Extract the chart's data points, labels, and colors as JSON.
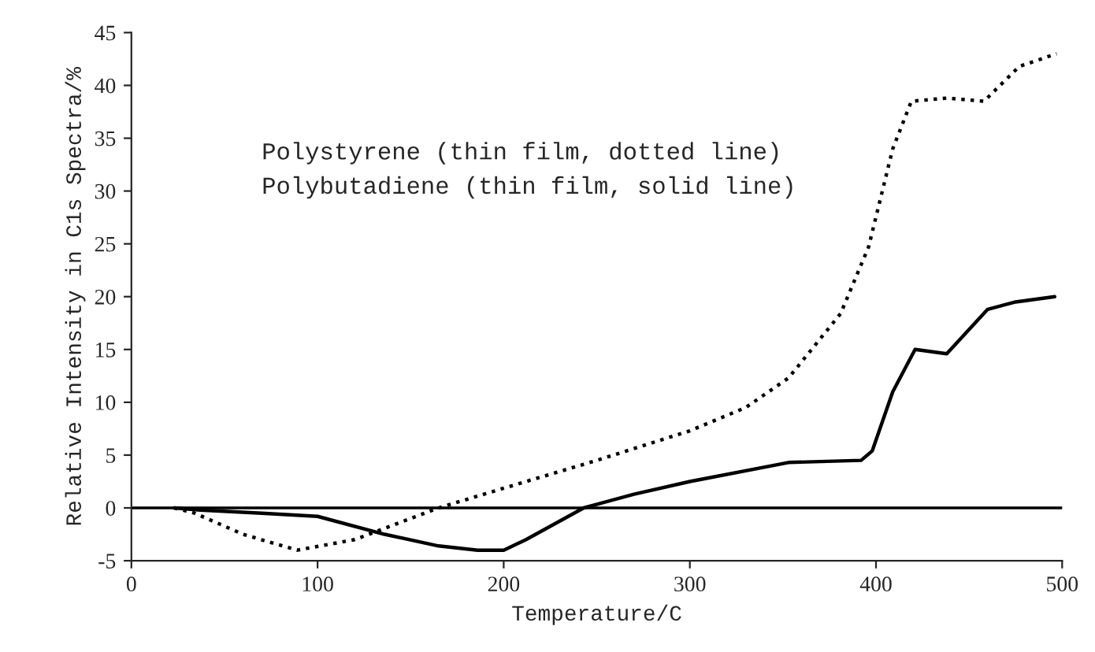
{
  "chart_data": {
    "type": "line",
    "xlabel": "Temperature/C",
    "ylabel": "Relative Intensity in C1s Spectra/%",
    "annotations": [
      "Polystyrene (thin film, dotted line)",
      "Polybutadiene (thin film, solid line)"
    ],
    "series": [
      {
        "color": "#000000",
        "line_style": "dotted",
        "x": [
          23,
          34,
          60,
          89,
          120,
          165,
          212,
          250,
          300,
          330,
          353,
          381,
          396,
          409,
          419,
          438,
          458,
          477,
          497
        ],
        "values": [
          0,
          -0.5,
          -2.5,
          -4,
          -3,
          0,
          2.5,
          4.5,
          7.3,
          9.5,
          12.3,
          18.4,
          24.7,
          34,
          38.5,
          38.8,
          38.5,
          41.8,
          43
        ]
      },
      {
        "color": "#000000",
        "line_style": "solid",
        "x": [
          23,
          37,
          70,
          100,
          136,
          165,
          186,
          200,
          212,
          243,
          270,
          300,
          353,
          392,
          398,
          409,
          421,
          438,
          460,
          475,
          496
        ],
        "values": [
          0,
          -0.2,
          -0.5,
          -0.8,
          -2.5,
          -3.6,
          -4,
          -4,
          -3,
          0,
          1.3,
          2.5,
          4.3,
          4.5,
          5.4,
          11,
          15,
          14.6,
          18.8,
          19.5,
          20
        ]
      }
    ],
    "xlim": [
      0,
      500
    ],
    "xticks": [
      0,
      100,
      200,
      300,
      400,
      500
    ],
    "ylim": [
      -5,
      45
    ],
    "yticks": [
      -5,
      0,
      5,
      10,
      15,
      20,
      25,
      30,
      35,
      40,
      45
    ],
    "ref_lines": [
      {
        "axis": "y",
        "value": 0,
        "color": "#000000",
        "line_style": "solid"
      }
    ],
    "grid": false,
    "marker": "none"
  }
}
